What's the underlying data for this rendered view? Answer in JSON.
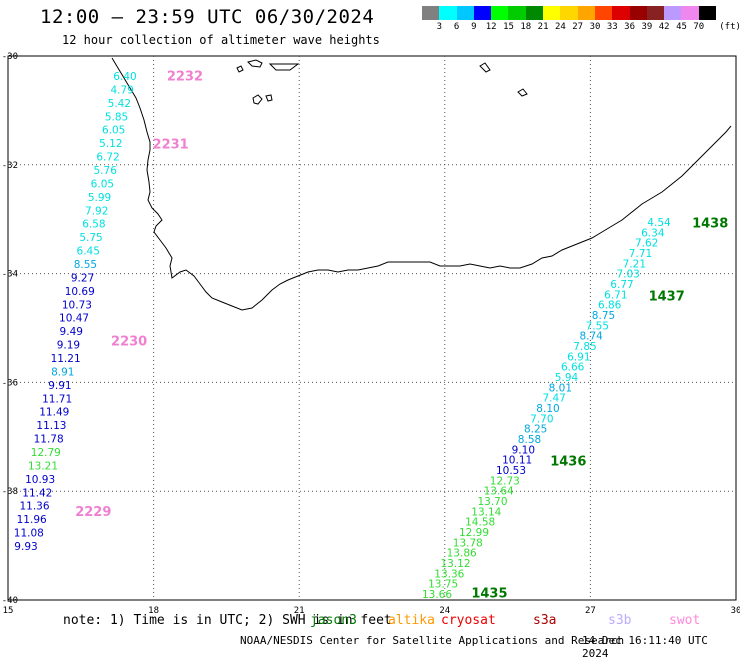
{
  "header": {
    "title": "12:00 – 23:59 UTC 06/30/2024",
    "subtitle": "12 hour collection of altimeter wave heights"
  },
  "legend": {
    "unit": "(ft)",
    "ticks": [
      "3",
      "6",
      "9",
      "12",
      "15",
      "18",
      "21",
      "24",
      "27",
      "30",
      "33",
      "36",
      "39",
      "42",
      "45",
      "70"
    ],
    "colors": [
      "#808080",
      "#00ffff",
      "#00c8ff",
      "#0000ff",
      "#00ff00",
      "#00cc00",
      "#008800",
      "#ffff00",
      "#ffd700",
      "#ffa500",
      "#ff4500",
      "#dd0000",
      "#990000",
      "#882222",
      "#bb99ff",
      "#ee88ee",
      "#000000"
    ]
  },
  "map": {
    "lon_ticks": [
      "15",
      "18",
      "21",
      "24",
      "27",
      "30"
    ],
    "lat_ticks": [
      "-30",
      "-32",
      "-34",
      "-36",
      "-38",
      "-40"
    ]
  },
  "tracks": [
    {
      "satellite": "swot",
      "color_hex": "#f080d0",
      "times": [
        {
          "label": "2232",
          "lat": -30.38
        },
        {
          "label": "2231",
          "lat": -31.63
        },
        {
          "label": "2230",
          "lat": -35.25
        },
        {
          "label": "2229",
          "lat": -38.38
        }
      ],
      "values": [
        {
          "v": "6.40",
          "c": "#00e0e0"
        },
        {
          "v": "4.79",
          "c": "#00e0e0"
        },
        {
          "v": "5.42",
          "c": "#00e0e0"
        },
        {
          "v": "5.85",
          "c": "#00e0e0"
        },
        {
          "v": "6.05",
          "c": "#00e0e0"
        },
        {
          "v": "5.12",
          "c": "#00e0e0"
        },
        {
          "v": "6.72",
          "c": "#00e0e0"
        },
        {
          "v": "5.76",
          "c": "#00e0e0"
        },
        {
          "v": "6.05",
          "c": "#00e0e0"
        },
        {
          "v": "5.99",
          "c": "#00e0e0"
        },
        {
          "v": "7.92",
          "c": "#00e0e0"
        },
        {
          "v": "6.58",
          "c": "#00e0e0"
        },
        {
          "v": "5.75",
          "c": "#00e0e0"
        },
        {
          "v": "6.45",
          "c": "#00e0e0"
        },
        {
          "v": "8.55",
          "c": "#00a8e0"
        },
        {
          "v": "9.27",
          "c": "#0000cc"
        },
        {
          "v": "10.69",
          "c": "#0000cc"
        },
        {
          "v": "10.73",
          "c": "#0000cc"
        },
        {
          "v": "10.47",
          "c": "#0000cc"
        },
        {
          "v": "9.49",
          "c": "#0000cc"
        },
        {
          "v": "9.19",
          "c": "#0000cc"
        },
        {
          "v": "11.21",
          "c": "#0000cc"
        },
        {
          "v": "8.91",
          "c": "#00a8e0"
        },
        {
          "v": "9.91",
          "c": "#0000cc"
        },
        {
          "v": "11.71",
          "c": "#0000cc"
        },
        {
          "v": "11.49",
          "c": "#0000cc"
        },
        {
          "v": "11.13",
          "c": "#0000cc"
        },
        {
          "v": "11.78",
          "c": "#0000cc"
        },
        {
          "v": "12.79",
          "c": "#33dd33"
        },
        {
          "v": "13.21",
          "c": "#33dd33"
        },
        {
          "v": "10.93",
          "c": "#0000cc"
        },
        {
          "v": "11.42",
          "c": "#0000cc"
        },
        {
          "v": "11.36",
          "c": "#0000cc"
        },
        {
          "v": "11.96",
          "c": "#0000cc"
        },
        {
          "v": "11.08",
          "c": "#0000cc"
        },
        {
          "v": "9.93",
          "c": "#0000cc"
        }
      ]
    },
    {
      "satellite": "jason3",
      "color_hex": "#007700",
      "times": [
        {
          "label": "1438",
          "lat": -33.08
        },
        {
          "label": "1437",
          "lat": -34.42
        },
        {
          "label": "1436",
          "lat": -37.45
        },
        {
          "label": "1435",
          "lat": -39.88
        }
      ],
      "values": [
        {
          "v": "4.54",
          "c": "#00e0e0"
        },
        {
          "v": "6.34",
          "c": "#00e0e0"
        },
        {
          "v": "7.62",
          "c": "#00e0e0"
        },
        {
          "v": "7.71",
          "c": "#00e0e0"
        },
        {
          "v": "7.21",
          "c": "#00e0e0"
        },
        {
          "v": "7.03",
          "c": "#00e0e0"
        },
        {
          "v": "6.77",
          "c": "#00e0e0"
        },
        {
          "v": "6.71",
          "c": "#00e0e0"
        },
        {
          "v": "6.86",
          "c": "#00e0e0"
        },
        {
          "v": "8.75",
          "c": "#00a8e0"
        },
        {
          "v": "7.55",
          "c": "#00e0e0"
        },
        {
          "v": "8.74",
          "c": "#00a8e0"
        },
        {
          "v": "7.85",
          "c": "#00e0e0"
        },
        {
          "v": "6.91",
          "c": "#00e0e0"
        },
        {
          "v": "6.66",
          "c": "#00e0e0"
        },
        {
          "v": "5.94",
          "c": "#00e0e0"
        },
        {
          "v": "8.01",
          "c": "#00a8e0"
        },
        {
          "v": "7.47",
          "c": "#00e0e0"
        },
        {
          "v": "8.10",
          "c": "#00a8e0"
        },
        {
          "v": "7.70",
          "c": "#00e0e0"
        },
        {
          "v": "8.25",
          "c": "#00a8e0"
        },
        {
          "v": "8.58",
          "c": "#00a8e0"
        },
        {
          "v": "9.10",
          "c": "#0000cc"
        },
        {
          "v": "10.11",
          "c": "#0000cc"
        },
        {
          "v": "10.53",
          "c": "#0000cc"
        },
        {
          "v": "12.73",
          "c": "#33dd33"
        },
        {
          "v": "13.64",
          "c": "#33dd33"
        },
        {
          "v": "13.70",
          "c": "#33dd33"
        },
        {
          "v": "13.14",
          "c": "#33dd33"
        },
        {
          "v": "14.58",
          "c": "#33dd33"
        },
        {
          "v": "12.99",
          "c": "#33dd33"
        },
        {
          "v": "13.78",
          "c": "#33dd33"
        },
        {
          "v": "13.86",
          "c": "#33dd33"
        },
        {
          "v": "13.12",
          "c": "#33dd33"
        },
        {
          "v": "13.36",
          "c": "#33dd33"
        },
        {
          "v": "13.75",
          "c": "#33dd33"
        },
        {
          "v": "13.66",
          "c": "#33dd33"
        }
      ]
    }
  ],
  "footer": {
    "note": "note: 1) Time is in UTC; 2) SWH is in feet",
    "satellites": [
      {
        "name": "jason3",
        "color": "#007700"
      },
      {
        "name": "altika",
        "color": "#ff9900"
      },
      {
        "name": "cryosat",
        "color": "#ee0000"
      },
      {
        "name": "s3a",
        "color": "#aa0000"
      },
      {
        "name": "s3b",
        "color": "#bbaaff"
      },
      {
        "name": "swot",
        "color": "#ff88dd"
      }
    ],
    "credit": "NOAA/NESDIS Center for Satellite Applications and Research",
    "timestamp": "14 Dec 16:11:40 UTC 2024"
  }
}
